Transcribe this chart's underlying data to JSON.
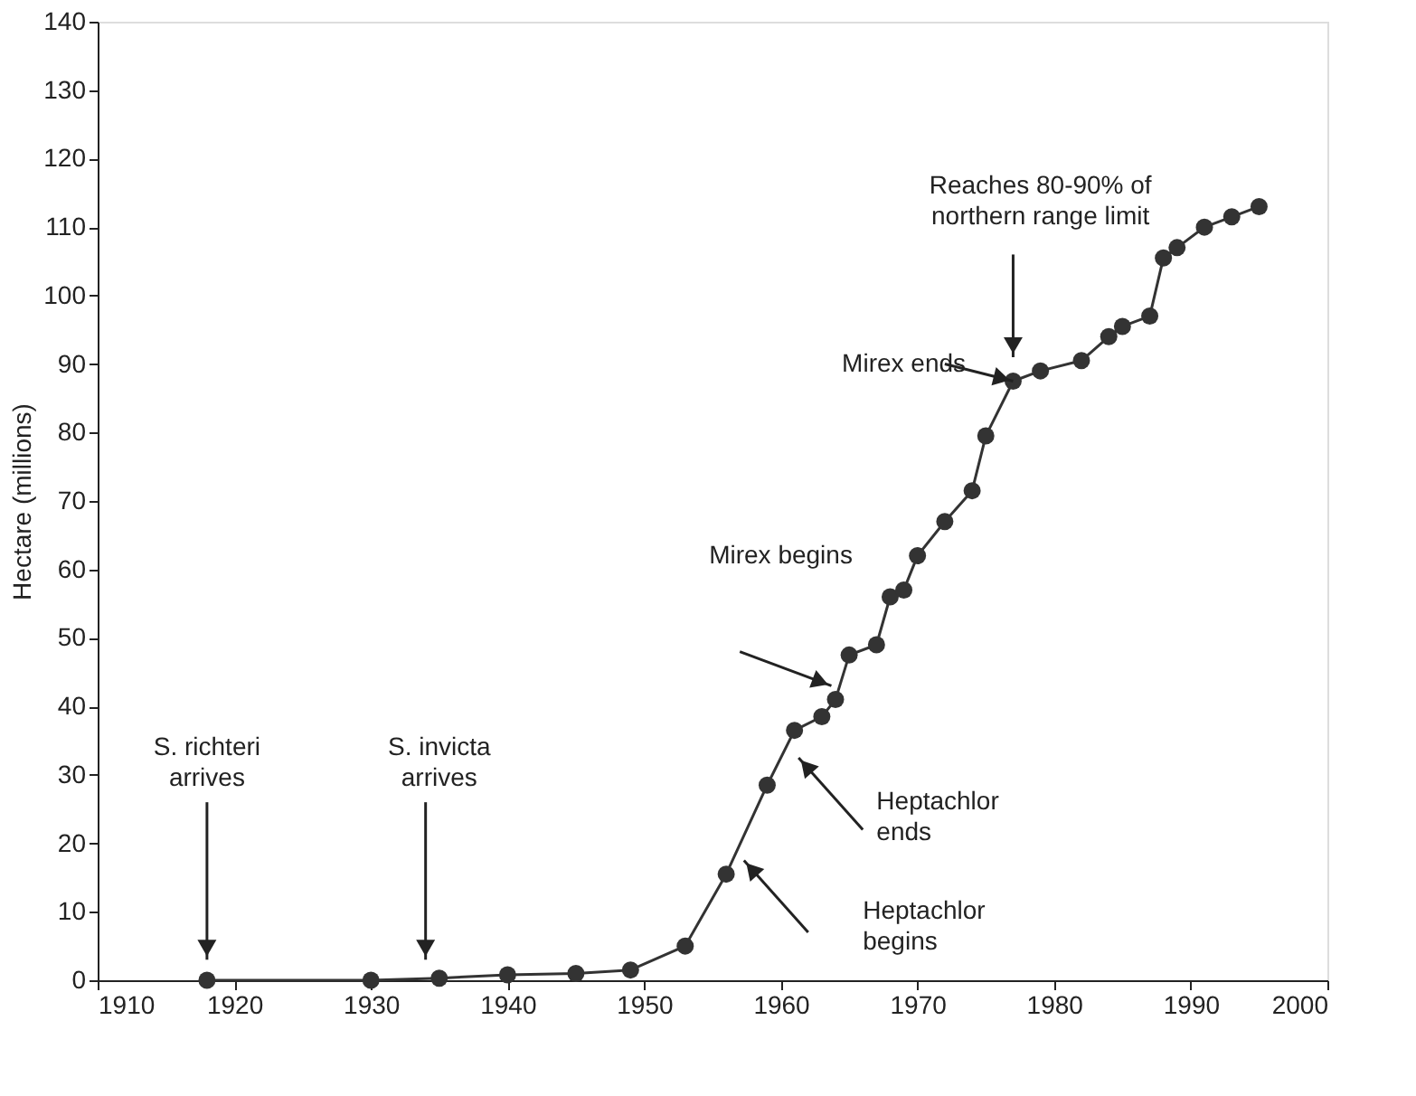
{
  "chart_data": {
    "type": "line",
    "ylabel": "Hectare (millions)",
    "x": [
      1918,
      1930,
      1935,
      1940,
      1945,
      1949,
      1953,
      1956,
      1959,
      1961,
      1963,
      1964,
      1965,
      1967,
      1968,
      1969,
      1970,
      1972,
      1974,
      1975,
      1977,
      1979,
      1982,
      1984,
      1985,
      1987,
      1988,
      1989,
      1991,
      1993,
      1995
    ],
    "series": [
      {
        "color": "#333333",
        "values": [
          0,
          0,
          0.3,
          0.8,
          1,
          1.5,
          5,
          15.5,
          28.5,
          36.5,
          38.5,
          41,
          47.5,
          49,
          56,
          57,
          62,
          67,
          71.5,
          79.5,
          87.5,
          89,
          90.5,
          94,
          95.5,
          97,
          105.5,
          107,
          110,
          111.5,
          113
        ]
      }
    ],
    "xlim": [
      1910,
      2000
    ],
    "xticks": [
      1910,
      1920,
      1930,
      1940,
      1950,
      1960,
      1970,
      1980,
      1990,
      2000
    ],
    "ylim": [
      0,
      140
    ],
    "yticks": [
      0,
      10,
      20,
      30,
      40,
      50,
      60,
      70,
      80,
      90,
      100,
      110,
      120,
      130,
      140
    ],
    "grid": false,
    "marker": "circle",
    "line_style": "solid",
    "annotations": [
      "S. richteri\narrives",
      "S. invicta\narrives",
      "Mirex begins",
      "Heptachlor\nends",
      "Heptachlor\nbegins",
      {
        "text": "Mirex ends",
        "x": 1977,
        "y": 87.5
      },
      "Reaches 80-90% of\nnorthern range limit"
    ]
  }
}
